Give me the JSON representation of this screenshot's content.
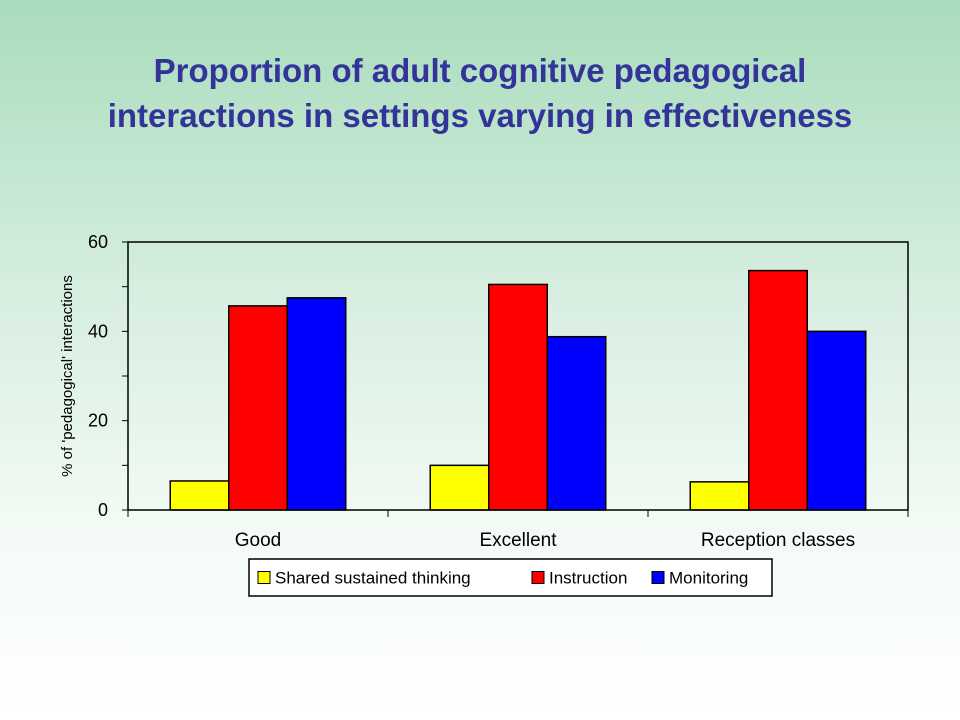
{
  "slide": {
    "title": "Proportion of adult cognitive pedagogical interactions in settings varying in effectiveness"
  },
  "chart_data": {
    "type": "bar",
    "title": "",
    "xlabel": "",
    "ylabel": "% of 'pedagogical' interactions",
    "ylim": [
      0,
      60
    ],
    "yticks": [
      0,
      20,
      40,
      60
    ],
    "grid": false,
    "legend_position": "bottom",
    "categories": [
      "Good",
      "Excellent",
      "Reception classes"
    ],
    "series": [
      {
        "name": "Shared sustained thinking",
        "color": "#ffff00",
        "values": [
          6.5,
          10,
          6.3
        ]
      },
      {
        "name": "Instruction",
        "color": "#ff0000",
        "values": [
          45.7,
          50.5,
          53.6
        ]
      },
      {
        "name": "Monitoring",
        "color": "#0000ff",
        "values": [
          47.5,
          38.8,
          40
        ]
      }
    ]
  }
}
